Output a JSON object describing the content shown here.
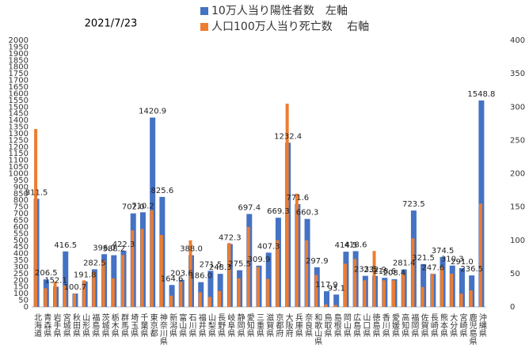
{
  "chart_data": {
    "type": "bar",
    "title": "2021/7/23",
    "categories": [
      "北海道",
      "青森県",
      "岩手県",
      "宮城県",
      "秋田県",
      "山形県",
      "福島県",
      "茨城県",
      "栃木県",
      "群馬県",
      "埼玉県",
      "千葉県",
      "東京都",
      "神奈川県",
      "新潟県",
      "富山県",
      "石川県",
      "福井県",
      "山梨県",
      "長野県",
      "岐阜県",
      "静岡県",
      "愛知県",
      "三重県",
      "滋賀県",
      "京都府",
      "大阪府",
      "兵庫県",
      "奈良県",
      "和歌山県",
      "鳥取県",
      "島根県",
      "岡山県",
      "広島県",
      "山口県",
      "徳島県",
      "香川県",
      "愛媛県",
      "高知県",
      "福岡県",
      "佐賀県",
      "長崎県",
      "熊本県",
      "大分県",
      "宮崎県",
      "鹿児島県",
      "沖縄県"
    ],
    "series": [
      {
        "name": "10万人当り陽性者数　左軸",
        "color": "#4472c4",
        "axis": "y",
        "values": [
          811.5,
          206.5,
          152.1,
          416.5,
          100.7,
          191.8,
          282.5,
          396.0,
          388.2,
          422.3,
          702.0,
          710.2,
          1420.9,
          825.6,
          164.6,
          203.6,
          388.0,
          186.0,
          271.5,
          248.3,
          472.3,
          275.5,
          697.4,
          309.9,
          407.3,
          669.3,
          1232.4,
          771.6,
          660.3,
          297.9,
          117.9,
          93.1,
          414.5,
          418.6,
          233.5,
          232.9,
          218.6,
          208.4,
          281.4,
          723.5,
          321.5,
          247.6,
          374.5,
          310.3,
          291.0,
          236.5,
          1548.8
        ],
        "value_labels": [
          "811.5",
          "206.5",
          "152.1",
          "416.5",
          "100.7",
          "191.8",
          "282.5",
          "396.0",
          "388.2",
          "422.3",
          "702.0",
          "710.2",
          "1420.9",
          "825.6",
          "164.6",
          "203.6",
          "388.0",
          "186.0",
          "271.5",
          "248.3",
          "472.3",
          "275.5",
          "697.4",
          "309.9",
          "407.3",
          "669.3",
          "1232.4",
          "771.6",
          "660.3",
          "297.9",
          "117.9",
          "93.1",
          "414.5",
          "418.6",
          "233.5",
          "232.9",
          "218.6",
          "208.4",
          "281.4",
          "723.5",
          "321.5",
          "247.6",
          "374.5",
          "310.3",
          "291.0",
          "236.5",
          "1548.8"
        ]
      },
      {
        "name": "人口100万人当り死亡数　 右軸",
        "color": "#ed7d31",
        "axis": "y2",
        "values": [
          267,
          28,
          38,
          32,
          20,
          40,
          53,
          70,
          43,
          78,
          115,
          117,
          145,
          108,
          17,
          38,
          100,
          22,
          15,
          24,
          96,
          43,
          120,
          60,
          42,
          100,
          305,
          170,
          100,
          48,
          4,
          3,
          65,
          72,
          40,
          84,
          40,
          40,
          50,
          103,
          30,
          50,
          60,
          50,
          20,
          25,
          155
        ]
      }
    ],
    "ylim": [
      0,
      2000
    ],
    "yticks": [
      0,
      50,
      100,
      150,
      200,
      250,
      300,
      350,
      400,
      450,
      500,
      550,
      600,
      650,
      700,
      750,
      800,
      850,
      900,
      950,
      1000,
      1050,
      1100,
      1150,
      1200,
      1250,
      1300,
      1350,
      1400,
      1450,
      1500,
      1550,
      1600,
      1650,
      1700,
      1750,
      1800,
      1850,
      1900,
      1950,
      2000
    ],
    "y2lim": [
      0,
      400
    ],
    "y2ticks": [
      0,
      50,
      100,
      150,
      200,
      250,
      300,
      350,
      400
    ],
    "legend": "top-right",
    "grid": false
  }
}
